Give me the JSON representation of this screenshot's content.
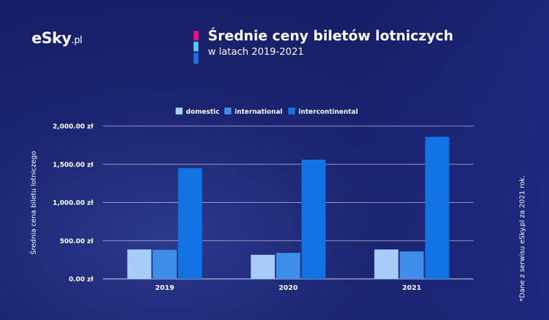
{
  "brand": {
    "logo_main": "eSky",
    "logo_suffix": ".pl"
  },
  "header": {
    "title": "Średnie ceny biletów lotniczych",
    "subtitle": "w latach 2019-2021",
    "accent_colors": [
      "#e0157a",
      "#5fc3ee",
      "#1874e6"
    ]
  },
  "note": "*Dane z serwisu eSky.pl za 2021 rok.",
  "chart_data": {
    "type": "bar",
    "title": "Średnie ceny biletów lotniczych",
    "subtitle": "w latach 2019-2021",
    "xlabel": "",
    "ylabel": "Średnia cena biletu lotniczego",
    "categories": [
      "2019",
      "2020",
      "2021"
    ],
    "series": [
      {
        "name": "domestic",
        "color": "#a6cdf7",
        "values": [
          385,
          315,
          385
        ]
      },
      {
        "name": "international",
        "color": "#3d8ee8",
        "values": [
          380,
          340,
          360
        ]
      },
      {
        "name": "intercontinental",
        "color": "#1274e3",
        "values": [
          1450,
          1560,
          1860
        ]
      }
    ],
    "ylim": [
      0,
      2000
    ],
    "yticks": [
      0,
      500,
      1000,
      1500,
      2000
    ],
    "ytick_labels": [
      "0.00 zł",
      "500.00 zł",
      "1,000.00 zł",
      "1,500.00 zł",
      "2,000.00 zł"
    ],
    "grid": true,
    "legend_position": "top-center"
  }
}
